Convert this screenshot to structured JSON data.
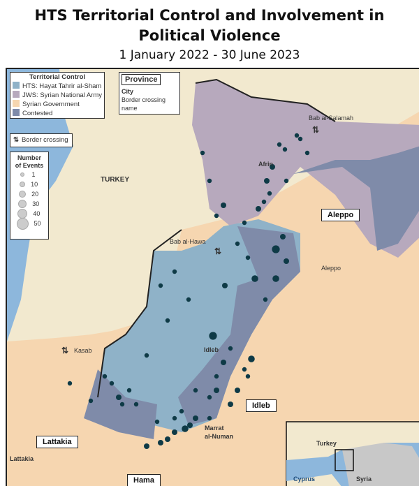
{
  "title_line1": "HTS Territorial Control and Involvement in",
  "title_line2": "Political Violence",
  "subtitle": "1 January 2022 - 30 June 2023",
  "colors": {
    "hts": "#8fb2c8",
    "jws": "#b7a9bd",
    "government": "#f6d6b0",
    "contested": "#7f8ba9",
    "turkey": "#f2e9cf",
    "sea": "#8db7dc",
    "events": "#0e3a46"
  },
  "legend": {
    "territorial_title": "Territorial Control",
    "items": [
      {
        "label": "HTS: Hayat Tahrir al-Sham",
        "color": "#8fb2c8"
      },
      {
        "label": "JWS: Syrian National Army",
        "color": "#b7a9bd"
      },
      {
        "label": "Syrian Government",
        "color": "#f6d6b0"
      },
      {
        "label": "Contested",
        "color": "#7f8ba9"
      }
    ],
    "province_label": "Province",
    "city_label": "City",
    "border_label": "Border crossing name",
    "border_crossing": "Border crossing",
    "events_title_1": "Number",
    "events_title_2": "of Events",
    "event_sizes": [
      "1",
      "10",
      "20",
      "30",
      "40",
      "50"
    ]
  },
  "labels": {
    "turkey": "TURKEY",
    "bab_al_salamah": "Bab al-Salamah",
    "afrin": "Afrin",
    "aleppo_prov": "Aleppo",
    "aleppo_city": "Aleppo",
    "bab_al_hawa": "Bab al-Hawa",
    "idleb_city": "Idleb",
    "idleb_prov": "Idleb",
    "kasab": "Kasab",
    "lattakia_prov": "Lattakia",
    "lattakia_city": "Lattakia",
    "marrat_1": "Marrat",
    "marrat_2": "al-Numan",
    "hama_prov": "Hama"
  },
  "inset": {
    "turkey": "Turkey",
    "cyprus": "Cyprus",
    "syria": "Syria"
  }
}
